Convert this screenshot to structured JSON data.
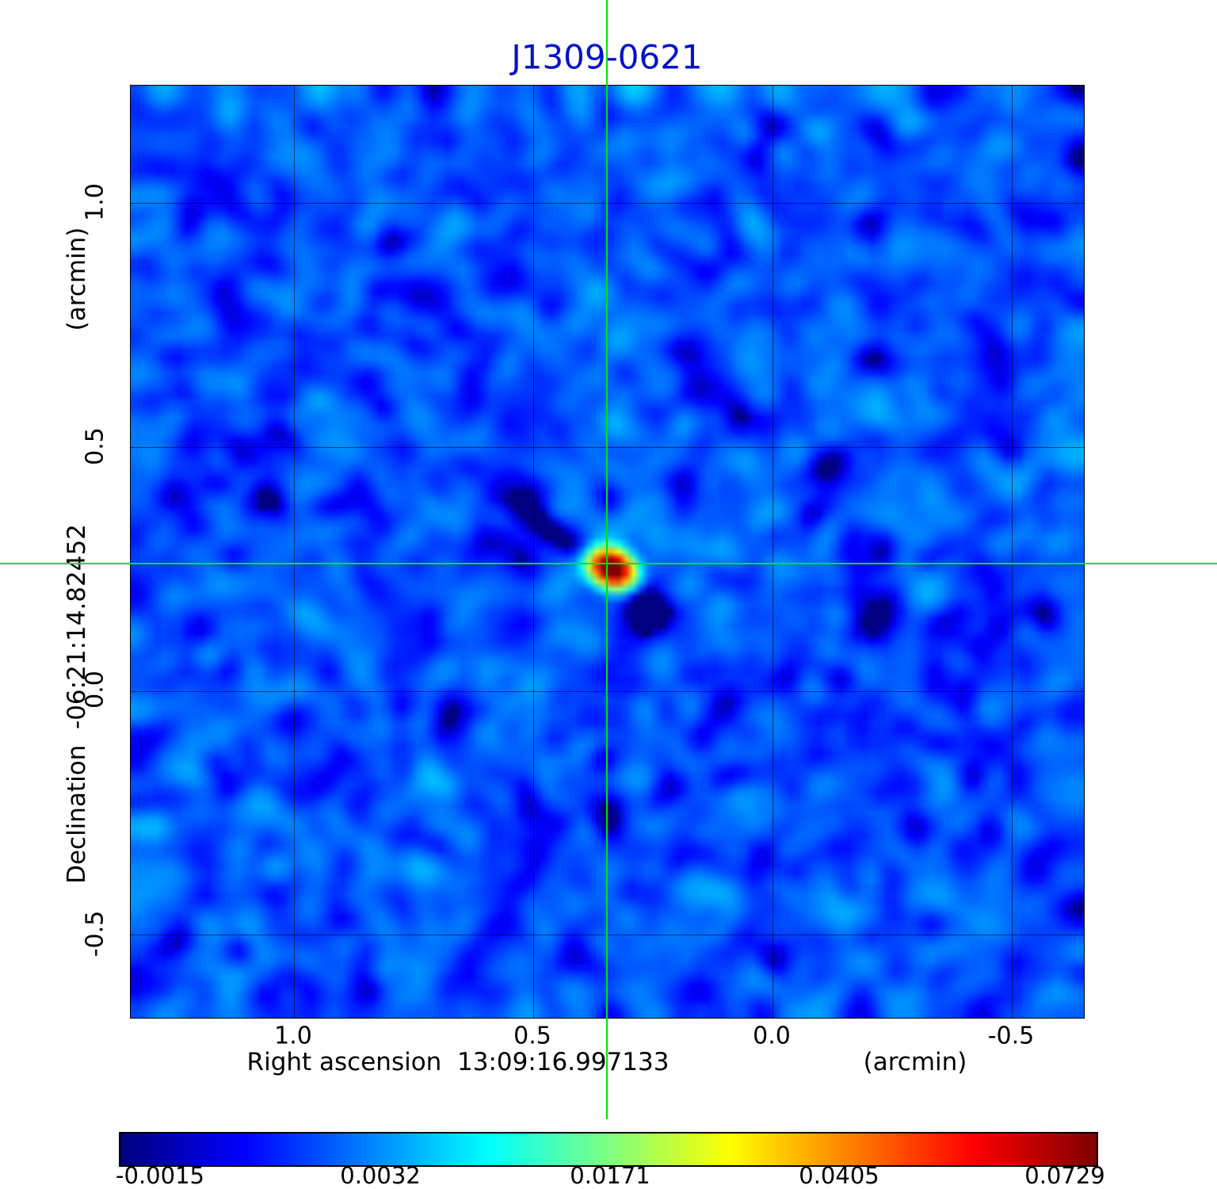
{
  "title": "J1309-0621",
  "colors": {
    "title": "#0011cc",
    "crosshair": "#00e400",
    "grid": "#000000"
  },
  "axes": {
    "y_unit": "(arcmin)",
    "y_label": "Declination  -06:21:14.82452",
    "x_label": "Right ascension  13:09:16.997133",
    "x_unit": "(arcmin)",
    "y_ticks": [
      "1.0",
      "0.5",
      "0.0",
      "-0.5"
    ],
    "x_ticks": [
      "1.0",
      "0.5",
      "0.0",
      "-0.5"
    ]
  },
  "colorbar": {
    "labels": [
      "-0.0015",
      "0.0032",
      "0.0171",
      "0.0405",
      "0.0729"
    ]
  },
  "chart_data": {
    "type": "heatmap",
    "title": "J1309-0621",
    "xlabel": "Right ascension 13:09:16.997133 (arcmin)",
    "ylabel": "Declination -06:21:14.82452 (arcmin)",
    "x_tick_values": [
      1.0,
      0.5,
      0.0,
      -0.5
    ],
    "y_tick_values": [
      1.0,
      0.5,
      0.0,
      -0.5
    ],
    "x_range_arcmin": [
      1.34,
      -0.66
    ],
    "y_range_arcmin": [
      1.24,
      -0.74
    ],
    "colormap": "jet",
    "scale": {
      "vmin": -0.0015,
      "vmax": 0.0729,
      "stretch": "squared",
      "ticks": [
        -0.0015,
        0.0032,
        0.0171,
        0.0405,
        0.0729
      ]
    },
    "peak_value": 0.0729,
    "source": {
      "name": "J1309-0621",
      "peak": 0.095,
      "center_frac": [
        0.5005,
        0.5136
      ],
      "sigma_cells": [
        1.9,
        1.45
      ],
      "angle_deg": 25
    },
    "negative_lobes": [
      {
        "offset_cells": [
          4.8,
          5.2
        ],
        "amp": -0.007,
        "sigma": [
          2.4,
          1.7
        ],
        "angle_deg": 35
      },
      {
        "offset_cells": [
          -7.2,
          -4.5
        ],
        "amp": -0.0035,
        "sigma": [
          6.0,
          1.3
        ],
        "angle_deg": 33
      }
    ],
    "rays": [
      {
        "angle_deg": 35,
        "amp": -0.0007,
        "width_cells": 1.8
      },
      {
        "angle_deg": -12,
        "amp": 0.0005,
        "width_cells": 1.3
      },
      {
        "angle_deg": 8,
        "amp": -0.0004,
        "width_cells": 1.5
      }
    ],
    "noise": {
      "grid": [
        128,
        125
      ],
      "seed": 1309,
      "base": 0.0016,
      "std": 0.0055,
      "blur_passes": 3
    }
  }
}
